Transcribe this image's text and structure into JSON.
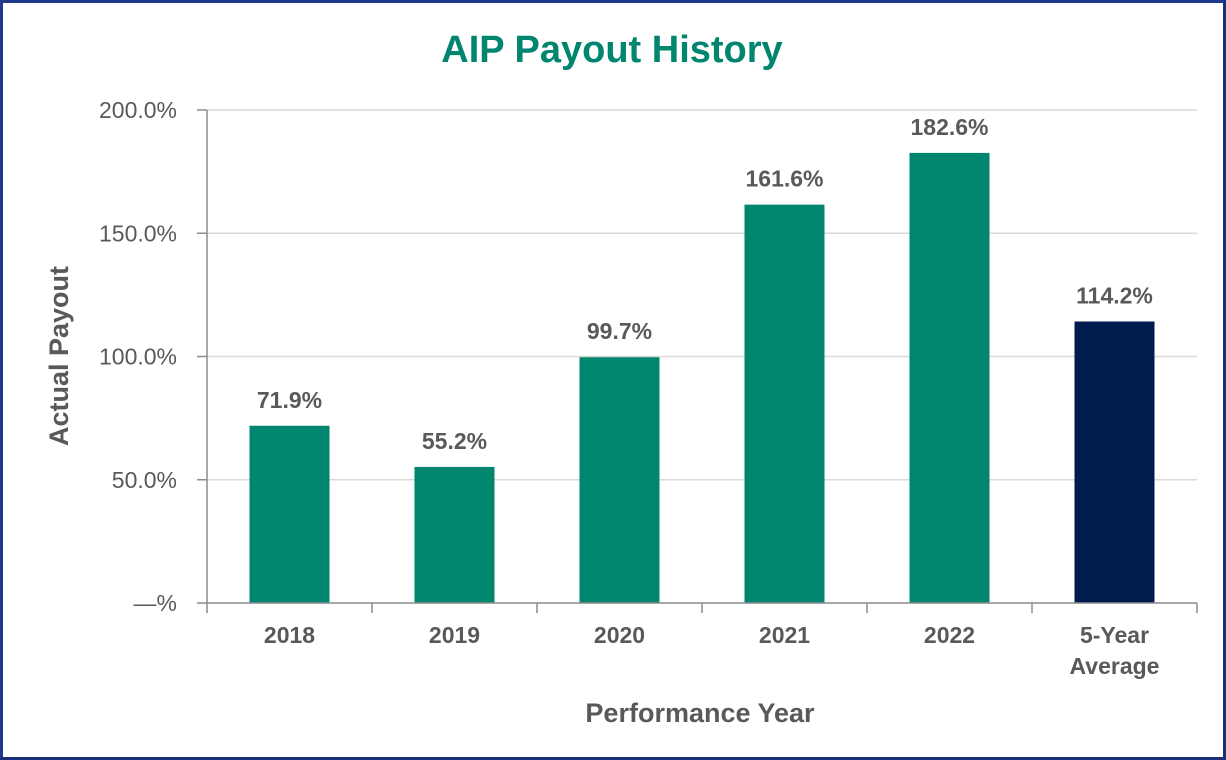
{
  "chart_data": {
    "type": "bar",
    "title": "AIP Payout History",
    "xlabel": "Performance Year",
    "ylabel": "Actual Payout",
    "categories": [
      [
        "2018"
      ],
      [
        "2019"
      ],
      [
        "2020"
      ],
      [
        "2021"
      ],
      [
        "2022"
      ],
      [
        "5-Year",
        "Average"
      ]
    ],
    "values": [
      71.9,
      55.2,
      99.7,
      161.6,
      182.6,
      114.2
    ],
    "data_labels": [
      "71.9%",
      "55.2%",
      "99.7%",
      "161.6%",
      "182.6%",
      "114.2%"
    ],
    "ylim": [
      0,
      200
    ],
    "yticks": [
      0,
      50,
      100,
      150,
      200
    ],
    "ytick_labels": [
      "—%",
      "50.0%",
      "100.0%",
      "150.0%",
      "200.0%"
    ],
    "grid": true,
    "legend": "none",
    "colors": {
      "title": "#00866e",
      "bar": "#00866e",
      "highlight_bar": "#001c4e",
      "gridline": "#d9d9d9",
      "axis": "#8c8c8c",
      "text": "#595959",
      "frame": "#1f3a8a"
    },
    "highlight_index": 5
  }
}
